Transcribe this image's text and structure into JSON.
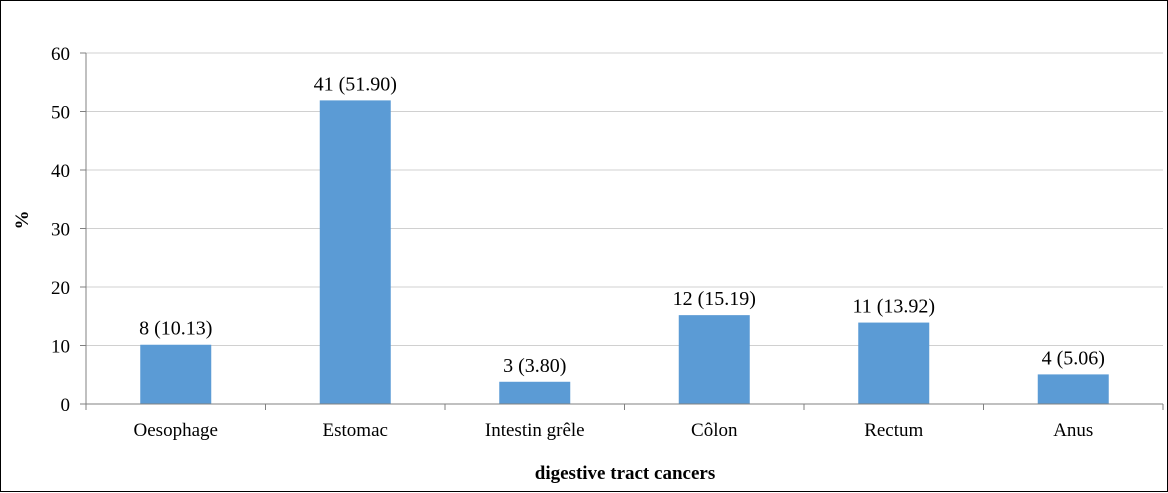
{
  "chart_data": {
    "type": "bar",
    "categories": [
      "Oesophage",
      "Estomac",
      "Intestin grêle",
      "Côlon",
      "Rectum",
      "Anus"
    ],
    "values": [
      10.13,
      51.9,
      3.8,
      15.19,
      13.92,
      5.06
    ],
    "data_labels": [
      "8 (10.13)",
      "41 (51.90)",
      "3 (3.80)",
      "12 (15.19)",
      "11 (13.92)",
      "4 (5.06)"
    ],
    "ylim": [
      0,
      60
    ],
    "yticks": [
      0,
      10,
      20,
      30,
      40,
      50,
      60
    ],
    "ylabel": "%",
    "xlabel": "digestive tract cancers",
    "bar_color": "#5b9bd5",
    "grid": true,
    "grid_color": "#d0d0d0",
    "legend": "none"
  }
}
